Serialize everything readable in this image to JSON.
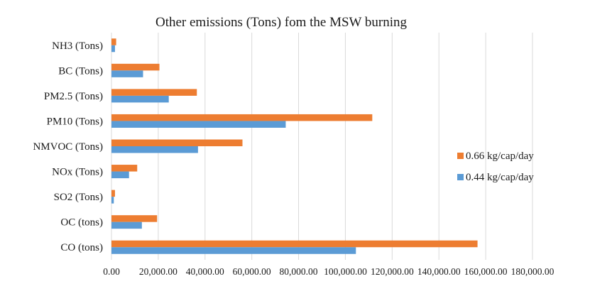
{
  "chart_data": {
    "type": "bar",
    "orientation": "horizontal",
    "title": "Other emissions (Tons) fom the MSW burning",
    "xlabel": "",
    "ylabel": "",
    "categories": [
      "NH3 (Tons)",
      "BC (Tons)",
      "PM2.5 (Tons)",
      "PM10 (Tons)",
      "NMVOC (Tons)",
      "NOx (Tons)",
      "SO2 (Tons)",
      "OC (tons)",
      "CO (tons)"
    ],
    "series": [
      {
        "name": "0.66 kg/cap/day",
        "color": "#ED7D31",
        "values": [
          2000,
          20500,
          36500,
          111500,
          56000,
          11000,
          1500,
          19500,
          156500
        ]
      },
      {
        "name": "0.44 kg/cap/day",
        "color": "#5B9BD5",
        "values": [
          1500,
          13500,
          24500,
          74500,
          37000,
          7500,
          1000,
          13000,
          104500
        ]
      }
    ],
    "xlim": [
      0,
      180000
    ],
    "xticks": [
      0,
      20000,
      40000,
      60000,
      80000,
      100000,
      120000,
      140000,
      160000,
      180000
    ],
    "xtick_labels": [
      "0.00",
      "20,000.00",
      "40,000.00",
      "60,000.00",
      "80,000.00",
      "100,000.00",
      "120,000.00",
      "140,000.00",
      "160,000.00",
      "180,000.00"
    ],
    "grid": "vertical",
    "legend": "right"
  }
}
